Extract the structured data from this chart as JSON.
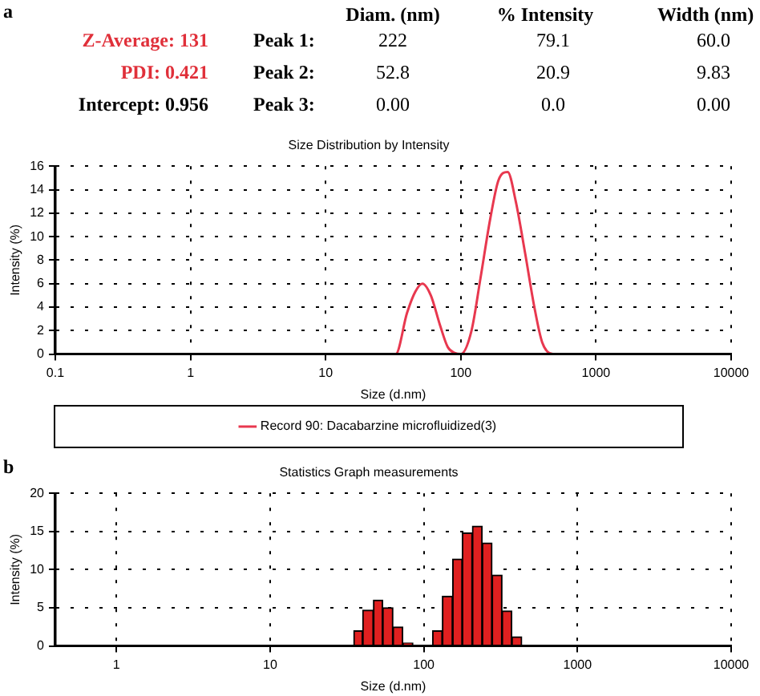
{
  "chart_data": [
    {
      "type": "other",
      "annotations": [
        "a",
        "Diam. (nm)",
        "% Intensity",
        "Width (nm)",
        "Z-Average: 131",
        "Peak 1:",
        "222",
        "79.1",
        "60.0",
        "PDI: 0.421",
        "Peak 2:",
        "52.8",
        "20.9",
        "9.83",
        "Intercept: 0.956",
        "Peak 3:",
        "0.00",
        "0.0",
        "0.00"
      ]
    },
    {
      "type": "line",
      "title": "Size Distribution by Intensity",
      "xlabel": "Size (d.nm)",
      "ylabel": "Intensity (%)",
      "log": "x",
      "x": [
        0.4,
        33,
        40,
        46,
        52,
        60,
        70,
        80,
        90,
        100,
        120,
        140,
        165,
        190,
        222,
        255,
        300,
        350,
        400,
        480,
        10000
      ],
      "series": [
        {
          "name": "Record 90: Dacabarzine microfluidized(3)",
          "color": "#e8384f",
          "values": [
            0,
            0,
            3.5,
            5.3,
            6,
            5,
            2.5,
            0.6,
            0.1,
            0,
            2,
            6.5,
            11.5,
            14.8,
            15.5,
            13,
            8.5,
            4,
            1,
            0,
            0
          ]
        }
      ],
      "xlim": [
        0.1,
        10000
      ],
      "xticks": [
        0.1,
        1,
        10,
        100,
        1000,
        10000
      ],
      "ylim": [
        0,
        16
      ],
      "yticks": [
        0,
        2,
        4,
        6,
        8,
        10,
        12,
        14,
        16
      ],
      "grid": true,
      "legend": "bottom"
    },
    {
      "type": "histogram",
      "title": "Statistics Graph measurements",
      "xlabel": "Size (d.nm)",
      "ylabel": "Intensity (%)",
      "log": "x",
      "annotations": [
        "b"
      ],
      "bins": [
        35,
        40,
        47,
        54,
        63,
        73,
        85,
        98,
        114,
        132,
        154,
        178,
        207,
        240,
        278,
        323,
        374,
        434
      ],
      "values": [
        2,
        4.7,
        6,
        5,
        2.5,
        0.4,
        0,
        0,
        2,
        6.5,
        11.4,
        14.8,
        15.7,
        13.5,
        9.3,
        4.6,
        1.2
      ],
      "color": "#e02020",
      "xlim": [
        0.4,
        10000
      ],
      "xticks": [
        1,
        10,
        100,
        1000,
        10000
      ],
      "ylim": [
        0,
        20
      ],
      "yticks": [
        0,
        5,
        10,
        15,
        20
      ],
      "grid": true
    }
  ]
}
